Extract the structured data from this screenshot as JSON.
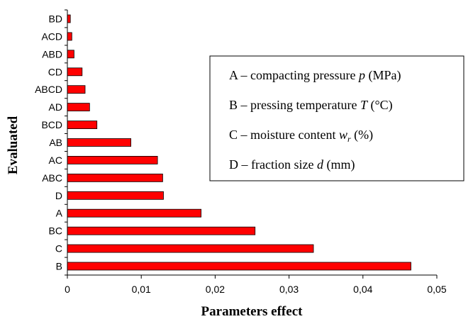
{
  "chart_data": {
    "type": "bar",
    "orientation": "horizontal",
    "categories": [
      "B",
      "C",
      "BC",
      "A",
      "D",
      "ABC",
      "AC",
      "AB",
      "BCD",
      "AD",
      "ABCD",
      "CD",
      "ABD",
      "ACD",
      "BD"
    ],
    "values": [
      0.0465,
      0.0333,
      0.0254,
      0.0181,
      0.013,
      0.0129,
      0.0122,
      0.0086,
      0.004,
      0.003,
      0.0024,
      0.002,
      0.0009,
      0.0006,
      0.0004
    ],
    "bar_color": "#ff0000",
    "bar_outline_color": "#000000",
    "xlabel": "Parameters effect",
    "ylabel": "Evaluated",
    "xlim": [
      0,
      0.05
    ],
    "x_ticks": [
      "0",
      "0,01",
      "0,02",
      "0,03",
      "0,04",
      "0,05"
    ],
    "grid": false,
    "legend_placement": "right",
    "legend": [
      {
        "prefix": "A – compacting pressure ",
        "var": "p",
        "suffix": " (MPa)"
      },
      {
        "prefix": "B – pressing temperature ",
        "var": "T",
        "suffix": " (°C)"
      },
      {
        "prefix": "C – moisture content ",
        "var": "w",
        "sub": "r",
        "suffix": " (%)"
      },
      {
        "prefix": "D – fraction size ",
        "var": "d",
        "suffix": " (mm)"
      }
    ]
  }
}
